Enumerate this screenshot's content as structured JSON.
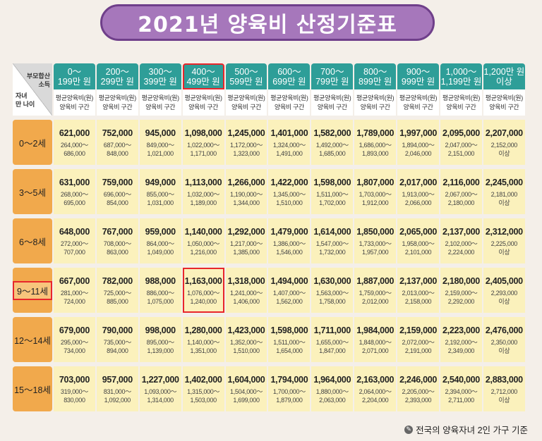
{
  "title": "2021년 양육비 산정기준표",
  "corner": {
    "top": [
      "부모합산",
      "소득"
    ],
    "bottom": [
      "자녀",
      "만 나이"
    ]
  },
  "income_columns": [
    {
      "line1": "0～",
      "line2": "199만 원"
    },
    {
      "line1": "200～",
      "line2": "299만 원"
    },
    {
      "line1": "300～",
      "line2": "399만 원"
    },
    {
      "line1": "400～",
      "line2": "499만 원",
      "highlight": true
    },
    {
      "line1": "500～",
      "line2": "599만 원"
    },
    {
      "line1": "600～",
      "line2": "699만 원"
    },
    {
      "line1": "700～",
      "line2": "799만 원"
    },
    {
      "line1": "800～",
      "line2": "899만 원"
    },
    {
      "line1": "900～",
      "line2": "999만 원"
    },
    {
      "line1": "1,000～",
      "line2": "1,199만 원"
    },
    {
      "line1": "1,200만 원",
      "line2": "이상"
    }
  ],
  "sub_header": {
    "line1": "평균양육비(원)",
    "line2": "양육비 구간"
  },
  "rows": [
    {
      "age": "0～2세",
      "cells": [
        {
          "avg": "621,000",
          "r1": "264,000～",
          "r2": "686,000"
        },
        {
          "avg": "752,000",
          "r1": "687,000～",
          "r2": "848,000"
        },
        {
          "avg": "945,000",
          "r1": "849,000～",
          "r2": "1,021,000"
        },
        {
          "avg": "1,098,000",
          "r1": "1,022,000～",
          "r2": "1,171,000"
        },
        {
          "avg": "1,245,000",
          "r1": "1,172,000～",
          "r2": "1,323,000"
        },
        {
          "avg": "1,401,000",
          "r1": "1,324,000～",
          "r2": "1,491,000"
        },
        {
          "avg": "1,582,000",
          "r1": "1,492,000～",
          "r2": "1,685,000"
        },
        {
          "avg": "1,789,000",
          "r1": "1,686,000～",
          "r2": "1,893,000"
        },
        {
          "avg": "1,997,000",
          "r1": "1,894,000～",
          "r2": "2,046,000"
        },
        {
          "avg": "2,095,000",
          "r1": "2,047,000～",
          "r2": "2,151,000"
        },
        {
          "avg": "2,207,000",
          "r1": "2,152,000",
          "r2": "이상"
        }
      ]
    },
    {
      "age": "3～5세",
      "cells": [
        {
          "avg": "631,000",
          "r1": "268,000～",
          "r2": "695,000"
        },
        {
          "avg": "759,000",
          "r1": "696,000～",
          "r2": "854,000"
        },
        {
          "avg": "949,000",
          "r1": "855,000～",
          "r2": "1,031,000"
        },
        {
          "avg": "1,113,000",
          "r1": "1,032,000～",
          "r2": "1,189,000"
        },
        {
          "avg": "1,266,000",
          "r1": "1,190,000～",
          "r2": "1,344,000"
        },
        {
          "avg": "1,422,000",
          "r1": "1,345,000～",
          "r2": "1,510,000"
        },
        {
          "avg": "1,598,000",
          "r1": "1,511,000～",
          "r2": "1,702,000"
        },
        {
          "avg": "1,807,000",
          "r1": "1,703,000～",
          "r2": "1,912,000"
        },
        {
          "avg": "2,017,000",
          "r1": "1,913,000～",
          "r2": "2,066,000"
        },
        {
          "avg": "2,116,000",
          "r1": "2,067,000～",
          "r2": "2,180,000"
        },
        {
          "avg": "2,245,000",
          "r1": "2,181,000",
          "r2": "이상"
        }
      ]
    },
    {
      "age": "6～8세",
      "cells": [
        {
          "avg": "648,000",
          "r1": "272,000～",
          "r2": "707,000"
        },
        {
          "avg": "767,000",
          "r1": "708,000～",
          "r2": "863,000"
        },
        {
          "avg": "959,000",
          "r1": "864,000～",
          "r2": "1,049,000"
        },
        {
          "avg": "1,140,000",
          "r1": "1,050,000～",
          "r2": "1,216,000"
        },
        {
          "avg": "1,292,000",
          "r1": "1,217,000～",
          "r2": "1,385,000"
        },
        {
          "avg": "1,479,000",
          "r1": "1,386,000～",
          "r2": "1,546,000"
        },
        {
          "avg": "1,614,000",
          "r1": "1,547,000～",
          "r2": "1,732,000"
        },
        {
          "avg": "1,850,000",
          "r1": "1,733,000～",
          "r2": "1,957,000"
        },
        {
          "avg": "2,065,000",
          "r1": "1,958,000～",
          "r2": "2,101,000"
        },
        {
          "avg": "2,137,000",
          "r1": "2,102,000～",
          "r2": "2,224,000"
        },
        {
          "avg": "2,312,000",
          "r1": "2,225,000",
          "r2": "이상"
        }
      ]
    },
    {
      "age": "9～11세",
      "highlight": true,
      "cells": [
        {
          "avg": "667,000",
          "r1": "281,000～",
          "r2": "724,000"
        },
        {
          "avg": "782,000",
          "r1": "725,000～",
          "r2": "885,000"
        },
        {
          "avg": "988,000",
          "r1": "886,000～",
          "r2": "1,075,000"
        },
        {
          "avg": "1,163,000",
          "r1": "1,076,000～",
          "r2": "1,240,000",
          "highlight": true
        },
        {
          "avg": "1,318,000",
          "r1": "1,241,000～",
          "r2": "1,406,000"
        },
        {
          "avg": "1,494,000",
          "r1": "1,407,000～",
          "r2": "1,562,000"
        },
        {
          "avg": "1,630,000",
          "r1": "1,563,000～",
          "r2": "1,758,000"
        },
        {
          "avg": "1,887,000",
          "r1": "1,759,000～",
          "r2": "2,012,000"
        },
        {
          "avg": "2,137,000",
          "r1": "2,013,000～",
          "r2": "2,158,000"
        },
        {
          "avg": "2,180,000",
          "r1": "2,159,000～",
          "r2": "2,292,000"
        },
        {
          "avg": "2,405,000",
          "r1": "2,293,000",
          "r2": "이상"
        }
      ]
    },
    {
      "age": "12～14세",
      "cells": [
        {
          "avg": "679,000",
          "r1": "295,000～",
          "r2": "734,000"
        },
        {
          "avg": "790,000",
          "r1": "735,000～",
          "r2": "894,000"
        },
        {
          "avg": "998,000",
          "r1": "895,000～",
          "r2": "1,139,000"
        },
        {
          "avg": "1,280,000",
          "r1": "1,140,000～",
          "r2": "1,351,000"
        },
        {
          "avg": "1,423,000",
          "r1": "1,352,000～",
          "r2": "1,510,000"
        },
        {
          "avg": "1,598,000",
          "r1": "1,511,000～",
          "r2": "1,654,000"
        },
        {
          "avg": "1,711,000",
          "r1": "1,655,000～",
          "r2": "1,847,000"
        },
        {
          "avg": "1,984,000",
          "r1": "1,848,000～",
          "r2": "2,071,000"
        },
        {
          "avg": "2,159,000",
          "r1": "2,072,000～",
          "r2": "2,191,000"
        },
        {
          "avg": "2,223,000",
          "r1": "2,192,000～",
          "r2": "2,349,000"
        },
        {
          "avg": "2,476,000",
          "r1": "2,350,000",
          "r2": "이상"
        }
      ]
    },
    {
      "age": "15～18세",
      "cells": [
        {
          "avg": "703,000",
          "r1": "319,000～",
          "r2": "830,000"
        },
        {
          "avg": "957,000",
          "r1": "831,000～",
          "r2": "1,092,000"
        },
        {
          "avg": "1,227,000",
          "r1": "1,093,000～",
          "r2": "1,314,000"
        },
        {
          "avg": "1,402,000",
          "r1": "1,315,000～",
          "r2": "1,503,000"
        },
        {
          "avg": "1,604,000",
          "r1": "1,504,000～",
          "r2": "1,699,000"
        },
        {
          "avg": "1,794,000",
          "r1": "1,700,000～",
          "r2": "1,879,000"
        },
        {
          "avg": "1,964,000",
          "r1": "1,880,000～",
          "r2": "2,063,000"
        },
        {
          "avg": "2,163,000",
          "r1": "2,064,000～",
          "r2": "2,204,000"
        },
        {
          "avg": "2,246,000",
          "r1": "2,205,000～",
          "r2": "2,393,000"
        },
        {
          "avg": "2,540,000",
          "r1": "2,394,000～",
          "r2": "2,711,000"
        },
        {
          "avg": "2,883,000",
          "r1": "2,712,000",
          "r2": "이상"
        }
      ]
    }
  ],
  "footer": {
    "icon": "pen-icon",
    "text": "전국의 양육자녀 2인 가구 기준"
  },
  "colors": {
    "title_bg": "#a677bb",
    "header_bg": "#2e9e98",
    "row_label_bg": "#f1a94c",
    "cell_bg": "#fbf1bc",
    "highlight": "#e8262b"
  }
}
